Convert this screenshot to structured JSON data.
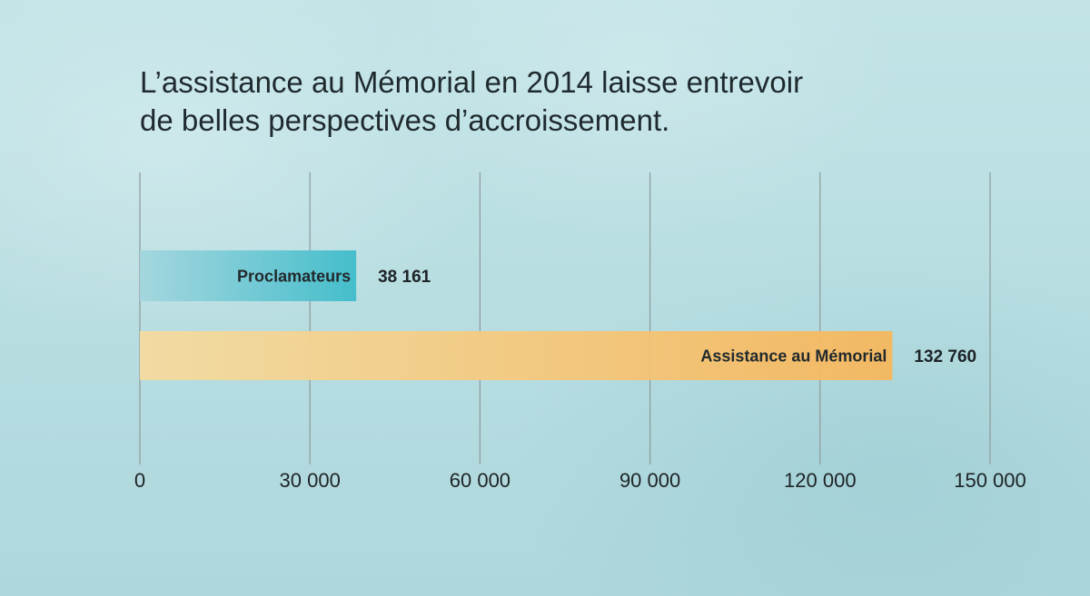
{
  "chart_data": {
    "type": "bar",
    "orientation": "horizontal",
    "title_lines": [
      "L’assistance au Mémorial en 2014 laisse entrevoir",
      "de belles perspectives d’accroissement."
    ],
    "categories": [
      "Proclamateurs",
      "Assistance au Mémorial"
    ],
    "values": [
      38161,
      132760
    ],
    "value_labels": [
      "38 161",
      "132 760"
    ],
    "xlim": [
      0,
      150000
    ],
    "ticks": [
      0,
      30000,
      60000,
      90000,
      120000,
      150000
    ],
    "tick_labels": [
      "0",
      "30 000",
      "60 000",
      "90 000",
      "120 000",
      "150 000"
    ],
    "grid": true,
    "colors": {
      "bar_1_start": "#a3d6de",
      "bar_1_end": "#3fbcca",
      "bar_2_start": "#f4dba0",
      "bar_2_end": "#f6b75c",
      "gridline": "#8f999b",
      "text": "#1d2326"
    }
  }
}
